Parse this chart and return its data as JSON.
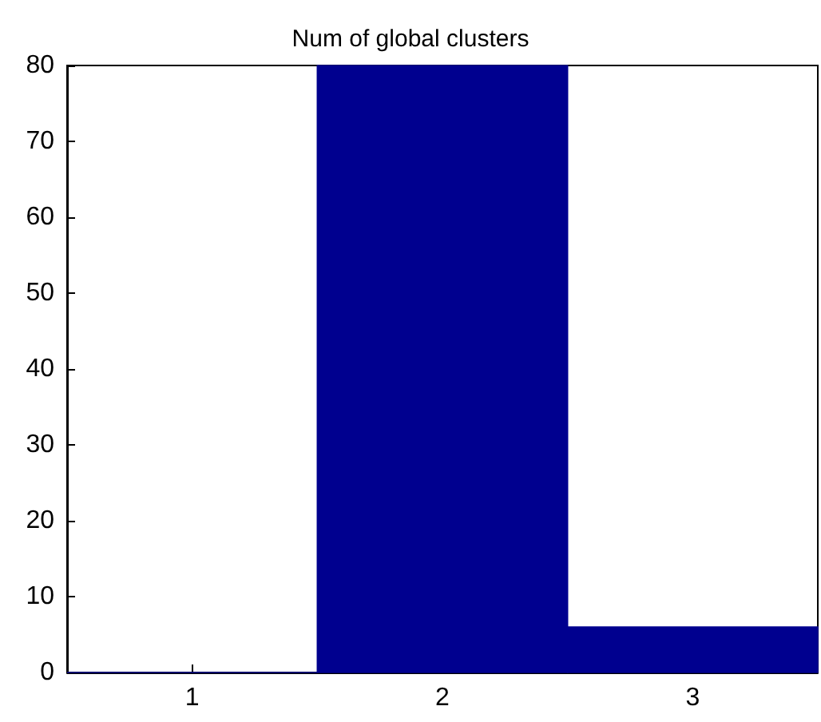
{
  "chart_data": {
    "type": "histogram",
    "title": "Num of global clusters",
    "bins": [
      0.5,
      1.5,
      2.5,
      3.5
    ],
    "values": [
      0,
      80,
      6
    ],
    "color": "#00008f",
    "xlim": [
      0.5,
      3.5
    ],
    "xticks": [
      1,
      2,
      3
    ],
    "ylim": [
      0,
      80
    ],
    "yticks": [
      0,
      10,
      20,
      30,
      40,
      50,
      60,
      70,
      80
    ],
    "grid": false
  }
}
